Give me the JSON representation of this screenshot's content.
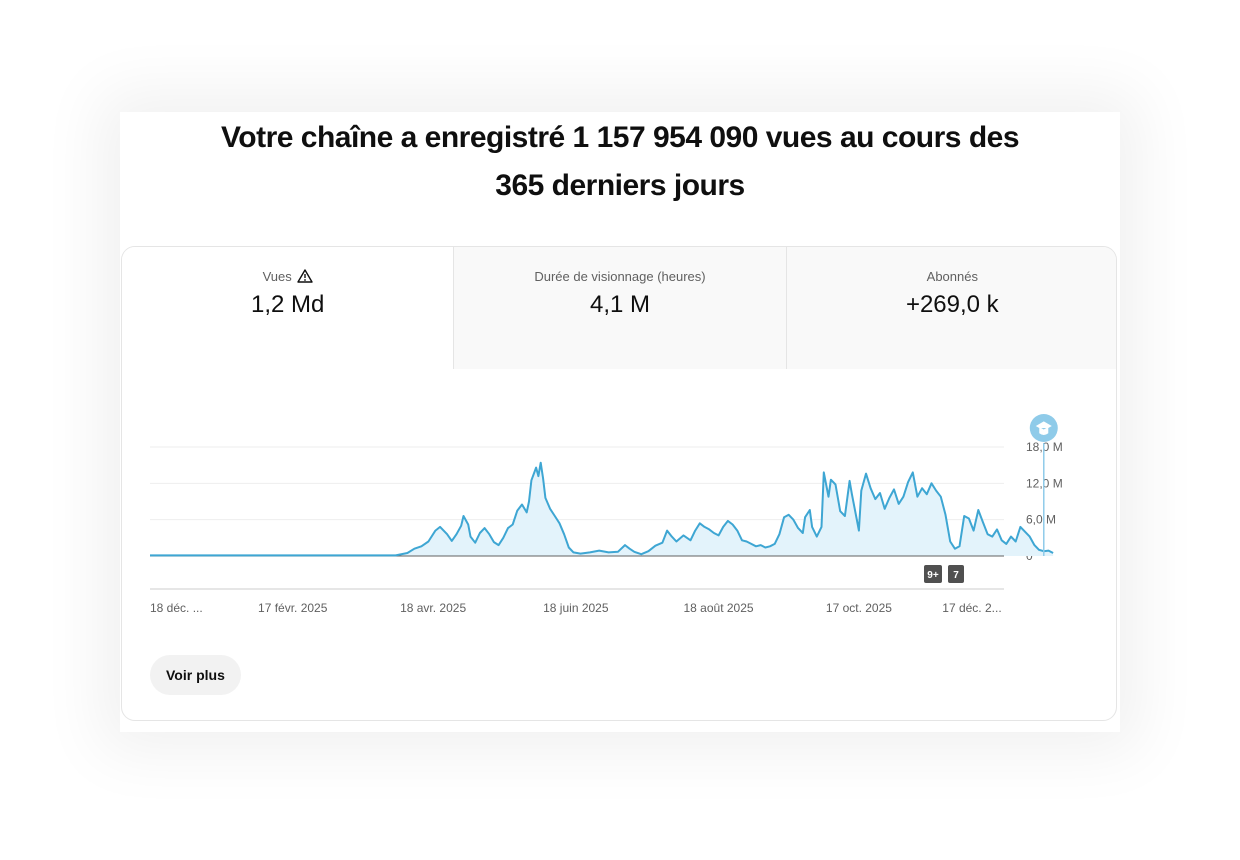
{
  "headline": {
    "line1": "Votre chaîne a enregistré 1 157 954 090 vues au cours des",
    "line2": "365 derniers jours"
  },
  "tabs": [
    {
      "label": "Vues",
      "value": "1,2 Md",
      "icon": "warning-triangle-icon"
    },
    {
      "label": "Durée de visionnage (heures)",
      "value": "4,1 M"
    },
    {
      "label": "Abonnés",
      "value": "+269,0 k"
    }
  ],
  "chart_data": {
    "type": "area",
    "y_tick_labels": [
      "18,0 M",
      "12,0 M",
      "6,0 M",
      "0"
    ],
    "y_ticks": [
      18,
      12,
      6,
      0
    ],
    "ylim": [
      0,
      18
    ],
    "x_tick_labels": [
      "18 déc. ...",
      "17 févr. 2025",
      "18 avr. 2025",
      "18 juin 2025",
      "18 août 2025",
      "17 oct. 2025",
      "17 déc. 2..."
    ],
    "x_ticks": [
      0,
      61,
      121,
      182,
      243,
      303,
      364
    ],
    "xlim": [
      0,
      365
    ],
    "grid": true,
    "color": "#3ea6d3",
    "fill_color": "#e3f3fb",
    "series": [
      {
        "points": [
          [
            0,
            0.1
          ],
          [
            105,
            0.1
          ],
          [
            110,
            0.5
          ],
          [
            113,
            1.2
          ],
          [
            116,
            1.6
          ],
          [
            119,
            2.4
          ],
          [
            122,
            4.2
          ],
          [
            124,
            4.8
          ],
          [
            127,
            3.6
          ],
          [
            129,
            2.5
          ],
          [
            131,
            3.6
          ],
          [
            133,
            5.0
          ],
          [
            134,
            6.6
          ],
          [
            136,
            5.2
          ],
          [
            137,
            3.2
          ],
          [
            139,
            2.2
          ],
          [
            141,
            3.8
          ],
          [
            143,
            4.6
          ],
          [
            145,
            3.6
          ],
          [
            147,
            2.3
          ],
          [
            149,
            1.8
          ],
          [
            151,
            3.0
          ],
          [
            153,
            4.6
          ],
          [
            155,
            5.2
          ],
          [
            157,
            7.5
          ],
          [
            159,
            8.5
          ],
          [
            161,
            7.2
          ],
          [
            162,
            9.0
          ],
          [
            163,
            12.5
          ],
          [
            165,
            14.6
          ],
          [
            166,
            13.2
          ],
          [
            167,
            15.4
          ],
          [
            168,
            12.8
          ],
          [
            169,
            9.6
          ],
          [
            171,
            7.8
          ],
          [
            173,
            6.6
          ],
          [
            175,
            5.4
          ],
          [
            177,
            3.6
          ],
          [
            179,
            1.4
          ],
          [
            181,
            0.6
          ],
          [
            184,
            0.4
          ],
          [
            188,
            0.6
          ],
          [
            192,
            0.9
          ],
          [
            196,
            0.6
          ],
          [
            200,
            0.7
          ],
          [
            203,
            1.8
          ],
          [
            205,
            1.2
          ],
          [
            207,
            0.7
          ],
          [
            210,
            0.3
          ],
          [
            213,
            0.8
          ],
          [
            216,
            1.7
          ],
          [
            219,
            2.2
          ],
          [
            221,
            4.2
          ],
          [
            223,
            3.2
          ],
          [
            225,
            2.4
          ],
          [
            228,
            3.4
          ],
          [
            231,
            2.6
          ],
          [
            233,
            4.2
          ],
          [
            235,
            5.4
          ],
          [
            237,
            4.8
          ],
          [
            239,
            4.4
          ],
          [
            241,
            3.8
          ],
          [
            243,
            3.4
          ],
          [
            245,
            4.8
          ],
          [
            247,
            5.8
          ],
          [
            249,
            5.2
          ],
          [
            251,
            4.2
          ],
          [
            253,
            2.6
          ],
          [
            255,
            2.4
          ],
          [
            257,
            2.0
          ],
          [
            259,
            1.6
          ],
          [
            261,
            1.8
          ],
          [
            263,
            1.4
          ],
          [
            265,
            1.6
          ],
          [
            267,
            2.0
          ],
          [
            269,
            3.6
          ],
          [
            271,
            6.4
          ],
          [
            273,
            6.8
          ],
          [
            275,
            6.0
          ],
          [
            277,
            4.6
          ],
          [
            279,
            3.8
          ],
          [
            280,
            6.4
          ],
          [
            282,
            7.6
          ],
          [
            283,
            4.8
          ],
          [
            285,
            3.2
          ],
          [
            287,
            4.8
          ],
          [
            288,
            13.8
          ],
          [
            290,
            9.8
          ],
          [
            291,
            12.6
          ],
          [
            293,
            11.8
          ],
          [
            295,
            7.4
          ],
          [
            297,
            6.6
          ],
          [
            299,
            12.4
          ],
          [
            300,
            10.2
          ],
          [
            302,
            6.2
          ],
          [
            303,
            4.2
          ],
          [
            304,
            10.8
          ],
          [
            306,
            13.6
          ],
          [
            308,
            11.2
          ],
          [
            310,
            9.4
          ],
          [
            312,
            10.4
          ],
          [
            314,
            7.8
          ],
          [
            316,
            9.6
          ],
          [
            318,
            11.0
          ],
          [
            320,
            8.6
          ],
          [
            322,
            9.8
          ],
          [
            324,
            12.2
          ],
          [
            326,
            13.8
          ],
          [
            328,
            9.8
          ],
          [
            330,
            11.2
          ],
          [
            332,
            10.2
          ],
          [
            334,
            12.0
          ],
          [
            336,
            10.8
          ],
          [
            338,
            9.8
          ],
          [
            340,
            6.8
          ],
          [
            342,
            2.4
          ],
          [
            344,
            1.2
          ],
          [
            346,
            1.6
          ],
          [
            348,
            6.6
          ],
          [
            350,
            6.2
          ],
          [
            352,
            4.2
          ],
          [
            354,
            7.6
          ],
          [
            356,
            5.6
          ],
          [
            358,
            3.6
          ],
          [
            360,
            3.2
          ],
          [
            362,
            4.4
          ],
          [
            364,
            2.6
          ],
          [
            366,
            2.0
          ],
          [
            368,
            3.2
          ],
          [
            370,
            2.4
          ],
          [
            372,
            4.8
          ],
          [
            374,
            4.0
          ],
          [
            376,
            3.2
          ],
          [
            378,
            1.8
          ],
          [
            380,
            1.0
          ],
          [
            382,
            0.8
          ],
          [
            384,
            0.9
          ],
          [
            386,
            0.5
          ]
        ]
      }
    ],
    "marker": {
      "x": 382,
      "icon": "milestone-badge-icon",
      "color": "#8fcbe9"
    },
    "badges": [
      "9+",
      "7"
    ]
  },
  "voir_plus_label": "Voir plus"
}
